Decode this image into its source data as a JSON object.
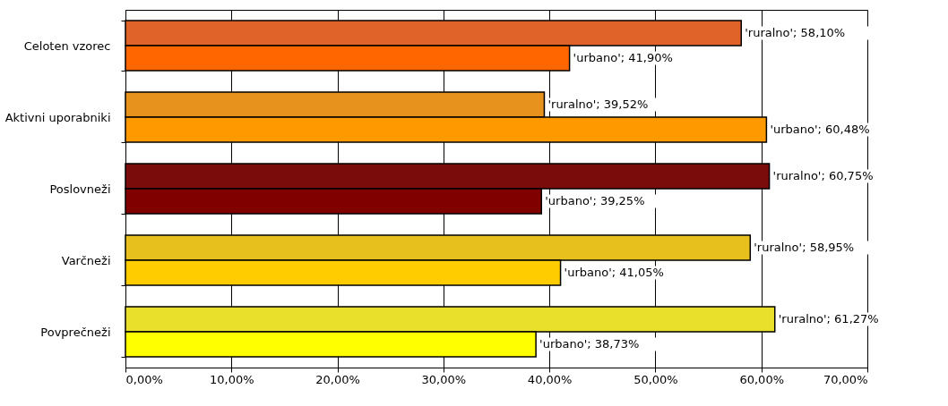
{
  "chart_data": {
    "type": "bar",
    "orientation": "horizontal",
    "categories": [
      "Celoten vzorec",
      "Aktivni uporabniki",
      "Poslovneži",
      "Varčneži",
      "Povprečneži"
    ],
    "series": [
      {
        "colors": [
          "#e0642a",
          "#e8921e",
          "#7a0c0c",
          "#e8c01e",
          "#e8e02a"
        ],
        "values": [
          58.1,
          39.52,
          60.75,
          58.95,
          61.27
        ],
        "value_labels": [
          "'ruralno'; 58,10%",
          "'ruralno'; 39,52%",
          "'ruralno'; 60,75%",
          "'ruralno'; 58,95%",
          "'ruralno'; 61,27%"
        ]
      },
      {
        "colors": [
          "#ff6600",
          "#ff9900",
          "#800000",
          "#ffcc00",
          "#ffff00"
        ],
        "values": [
          41.9,
          60.48,
          39.25,
          41.05,
          38.73
        ],
        "value_labels": [
          "'urbano'; 41,90%",
          "'urbano'; 60,48%",
          "'urbano'; 39,25%",
          "'urbano'; 41,05%",
          "'urbano'; 38,73%"
        ]
      }
    ],
    "xlim": [
      0,
      70
    ],
    "xticks": [
      {
        "value": 0,
        "label": "0,00%"
      },
      {
        "value": 10,
        "label": "10,00%"
      },
      {
        "value": 20,
        "label": "20,00%"
      },
      {
        "value": 30,
        "label": "30,00%"
      },
      {
        "value": 40,
        "label": "40,00%"
      },
      {
        "value": 50,
        "label": "50,00%"
      },
      {
        "value": 60,
        "label": "60,00%"
      },
      {
        "value": 70,
        "label": "70,00%"
      }
    ],
    "grid": "x"
  }
}
